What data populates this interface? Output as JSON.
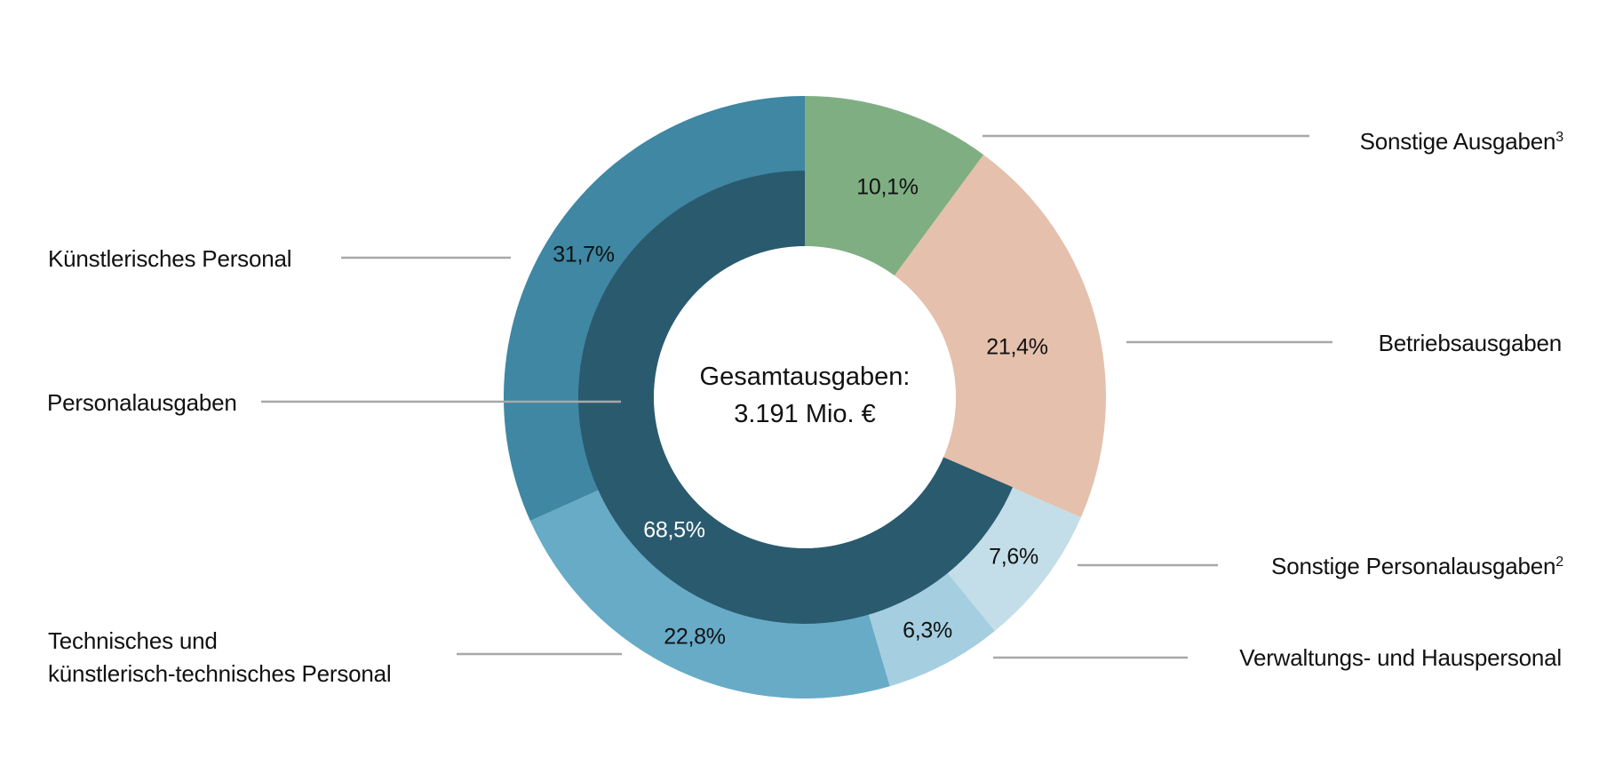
{
  "chart_data": {
    "type": "pie",
    "subtype": "nested-donut",
    "title": "",
    "center_label": {
      "line1": "Gesamtausgaben:",
      "line2": "3.191 Mio. €"
    },
    "outer_ring": [
      {
        "label": "Sonstige Ausgaben",
        "footnote": "3",
        "value": 10.1,
        "display": "10,1%",
        "color": "#7fae82"
      },
      {
        "label": "Betriebsausgaben",
        "footnote": "",
        "value": 21.4,
        "display": "21,4%",
        "color": "#e5c0ad"
      },
      {
        "label": "Sonstige Personalausgaben",
        "footnote": "2",
        "value": 7.6,
        "display": "7,6%",
        "color": "#c3dee8"
      },
      {
        "label": "Verwaltungs- und Hauspersonal",
        "footnote": "",
        "value": 6.3,
        "display": "6,3%",
        "color": "#a5cfe0"
      },
      {
        "label": "Technisches und künstlerisch-technisches Personal",
        "footnote": "",
        "value": 22.8,
        "display": "22,8%",
        "color": "#67abc7"
      },
      {
        "label": "Künstlerisches Personal",
        "footnote": "",
        "value": 31.7,
        "display": "31,7%",
        "color": "#3f87a3"
      }
    ],
    "inner_ring": [
      {
        "label": "Personalausgaben",
        "value": 68.5,
        "display": "68,5%",
        "color": "#2a5a6e",
        "start_after_percent": 31.5
      }
    ],
    "units": "%",
    "total": "3.191 Mio. €",
    "legend_position": "leader-line labels"
  },
  "labels": {
    "sonstige_ausgaben": {
      "text": "Sonstige Ausgaben",
      "sup": "3"
    },
    "betriebsausgaben": {
      "text": "Betriebsausgaben"
    },
    "sonstige_personalausgaben": {
      "text": "Sonstige Personalausgaben",
      "sup": "2"
    },
    "verwaltungs": {
      "text": "Verwaltungs- und Hauspersonal"
    },
    "kuenstlerisches": {
      "text": "Künstlerisches Personal"
    },
    "personalausgaben": {
      "text": "Personalausgaben"
    },
    "technisches_line1": {
      "text": "Technisches und"
    },
    "technisches_line2": {
      "text": "künstlerisch-technisches Personal"
    }
  },
  "percent_labels": {
    "sonstige_ausgaben": "10,1%",
    "betriebsausgaben": "21,4%",
    "sonstige_personalausgaben": "7,6%",
    "verwaltungs": "6,3%",
    "technisches": "22,8%",
    "kuenstlerisches": "31,7%",
    "personalausgaben": "68,5%"
  },
  "colors": {
    "leader_line": "#a8a8a8",
    "text": "#111111",
    "inner_text": "#ffffff"
  }
}
